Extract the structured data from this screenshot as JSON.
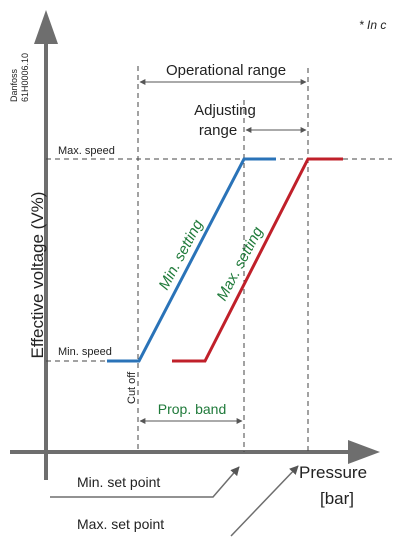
{
  "corner_note": "* In c",
  "watermark": {
    "line1": "Danfoss",
    "line2": "61H0006.10"
  },
  "axes": {
    "y_label": "Effective voltage (V%)",
    "x_label_line1": "Pressure",
    "x_label_line2": "[bar]"
  },
  "levels": {
    "max_speed": "Max. speed",
    "min_speed": "Min. speed",
    "cut_off": "Cut off"
  },
  "ranges": {
    "operational": "Operational range",
    "adjusting_line1": "Adjusting",
    "adjusting_line2": "range",
    "prop_band": "Prop. band"
  },
  "lines": {
    "min_setting": "Min. setting",
    "max_setting": "Max. setting"
  },
  "set_points": {
    "min": "Min. set point",
    "max": "Max. set point"
  },
  "colors": {
    "min_line": "#2a73b8",
    "max_line": "#c0202a",
    "setting_text": "#1f7a3a",
    "axis": "#6e6e6e"
  }
}
